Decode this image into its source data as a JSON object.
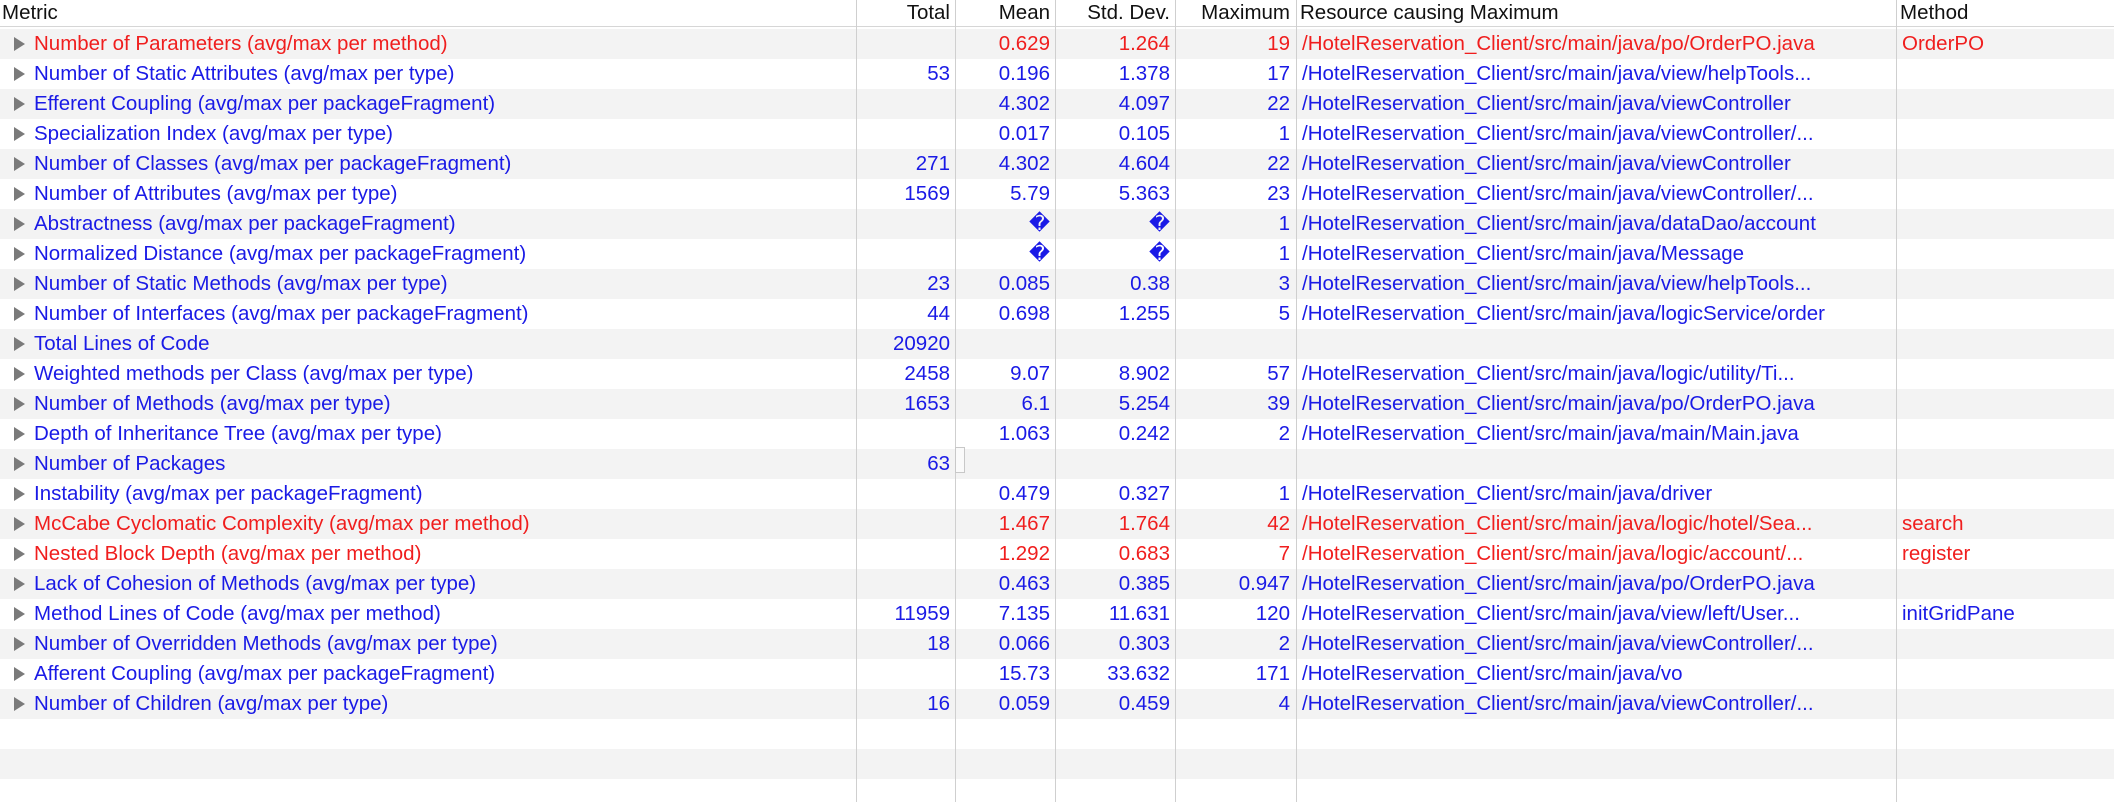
{
  "columns": {
    "metric": "Metric",
    "total": "Total",
    "mean": "Mean",
    "std": "Std. Dev.",
    "max": "Maximum",
    "resource": "Resource causing Maximum",
    "method": "Method"
  },
  "colors": {
    "normal": "#1a1ae6",
    "violation": "#f01e1e"
  },
  "rows": [
    {
      "metric": "Number of Parameters (avg/max per method)",
      "total": "",
      "mean": "0.629",
      "std": "1.264",
      "max": "19",
      "resource": "/HotelReservation_Client/src/main/java/po/OrderPO.java",
      "method": "OrderPO",
      "status": "violation"
    },
    {
      "metric": "Number of Static Attributes (avg/max per type)",
      "total": "53",
      "mean": "0.196",
      "std": "1.378",
      "max": "17",
      "resource": "/HotelReservation_Client/src/main/java/view/helpTools...",
      "method": "",
      "status": "normal"
    },
    {
      "metric": "Efferent Coupling (avg/max per packageFragment)",
      "total": "",
      "mean": "4.302",
      "std": "4.097",
      "max": "22",
      "resource": "/HotelReservation_Client/src/main/java/viewController",
      "method": "",
      "status": "normal"
    },
    {
      "metric": "Specialization Index (avg/max per type)",
      "total": "",
      "mean": "0.017",
      "std": "0.105",
      "max": "1",
      "resource": "/HotelReservation_Client/src/main/java/viewController/...",
      "method": "",
      "status": "normal"
    },
    {
      "metric": "Number of Classes (avg/max per packageFragment)",
      "total": "271",
      "mean": "4.302",
      "std": "4.604",
      "max": "22",
      "resource": "/HotelReservation_Client/src/main/java/viewController",
      "method": "",
      "status": "normal"
    },
    {
      "metric": "Number of Attributes (avg/max per type)",
      "total": "1569",
      "mean": "5.79",
      "std": "5.363",
      "max": "23",
      "resource": "/HotelReservation_Client/src/main/java/viewController/...",
      "method": "",
      "status": "normal"
    },
    {
      "metric": "Abstractness (avg/max per packageFragment)",
      "total": "",
      "mean": "�",
      "std": "�",
      "max": "1",
      "resource": "/HotelReservation_Client/src/main/java/dataDao/account",
      "method": "",
      "status": "normal"
    },
    {
      "metric": "Normalized Distance (avg/max per packageFragment)",
      "total": "",
      "mean": "�",
      "std": "�",
      "max": "1",
      "resource": "/HotelReservation_Client/src/main/java/Message",
      "method": "",
      "status": "normal"
    },
    {
      "metric": "Number of Static Methods (avg/max per type)",
      "total": "23",
      "mean": "0.085",
      "std": "0.38",
      "max": "3",
      "resource": "/HotelReservation_Client/src/main/java/view/helpTools...",
      "method": "",
      "status": "normal"
    },
    {
      "metric": "Number of Interfaces (avg/max per packageFragment)",
      "total": "44",
      "mean": "0.698",
      "std": "1.255",
      "max": "5",
      "resource": "/HotelReservation_Client/src/main/java/logicService/order",
      "method": "",
      "status": "normal"
    },
    {
      "metric": "Total Lines of Code",
      "total": "20920",
      "mean": "",
      "std": "",
      "max": "",
      "resource": "",
      "method": "",
      "status": "normal"
    },
    {
      "metric": "Weighted methods per Class (avg/max per type)",
      "total": "2458",
      "mean": "9.07",
      "std": "8.902",
      "max": "57",
      "resource": "/HotelReservation_Client/src/main/java/logic/utility/Ti...",
      "method": "",
      "status": "normal"
    },
    {
      "metric": "Number of Methods (avg/max per type)",
      "total": "1653",
      "mean": "6.1",
      "std": "5.254",
      "max": "39",
      "resource": "/HotelReservation_Client/src/main/java/po/OrderPO.java",
      "method": "",
      "status": "normal"
    },
    {
      "metric": "Depth of Inheritance Tree (avg/max per type)",
      "total": "",
      "mean": "1.063",
      "std": "0.242",
      "max": "2",
      "resource": "/HotelReservation_Client/src/main/java/main/Main.java",
      "method": "",
      "status": "normal"
    },
    {
      "metric": "Number of Packages",
      "total": "63",
      "mean": "",
      "std": "",
      "max": "",
      "resource": "",
      "method": "",
      "status": "normal"
    },
    {
      "metric": "Instability (avg/max per packageFragment)",
      "total": "",
      "mean": "0.479",
      "std": "0.327",
      "max": "1",
      "resource": "/HotelReservation_Client/src/main/java/driver",
      "method": "",
      "status": "normal"
    },
    {
      "metric": "McCabe Cyclomatic Complexity (avg/max per method)",
      "total": "",
      "mean": "1.467",
      "std": "1.764",
      "max": "42",
      "resource": "/HotelReservation_Client/src/main/java/logic/hotel/Sea...",
      "method": "search",
      "status": "violation"
    },
    {
      "metric": "Nested Block Depth (avg/max per method)",
      "total": "",
      "mean": "1.292",
      "std": "0.683",
      "max": "7",
      "resource": "/HotelReservation_Client/src/main/java/logic/account/...",
      "method": "register",
      "status": "violation"
    },
    {
      "metric": "Lack of Cohesion of Methods (avg/max per type)",
      "total": "",
      "mean": "0.463",
      "std": "0.385",
      "max": "0.947",
      "resource": "/HotelReservation_Client/src/main/java/po/OrderPO.java",
      "method": "",
      "status": "normal"
    },
    {
      "metric": "Method Lines of Code (avg/max per method)",
      "total": "11959",
      "mean": "7.135",
      "std": "11.631",
      "max": "120",
      "resource": "/HotelReservation_Client/src/main/java/view/left/User...",
      "method": "initGridPane",
      "status": "normal"
    },
    {
      "metric": "Number of Overridden Methods (avg/max per type)",
      "total": "18",
      "mean": "0.066",
      "std": "0.303",
      "max": "2",
      "resource": "/HotelReservation_Client/src/main/java/viewController/...",
      "method": "",
      "status": "normal"
    },
    {
      "metric": "Afferent Coupling (avg/max per packageFragment)",
      "total": "",
      "mean": "15.73",
      "std": "33.632",
      "max": "171",
      "resource": "/HotelReservation_Client/src/main/java/vo",
      "method": "",
      "status": "normal"
    },
    {
      "metric": "Number of Children (avg/max per type)",
      "total": "16",
      "mean": "0.059",
      "std": "0.459",
      "max": "4",
      "resource": "/HotelReservation_Client/src/main/java/viewController/...",
      "method": "",
      "status": "normal"
    }
  ],
  "empty_rows": 3
}
